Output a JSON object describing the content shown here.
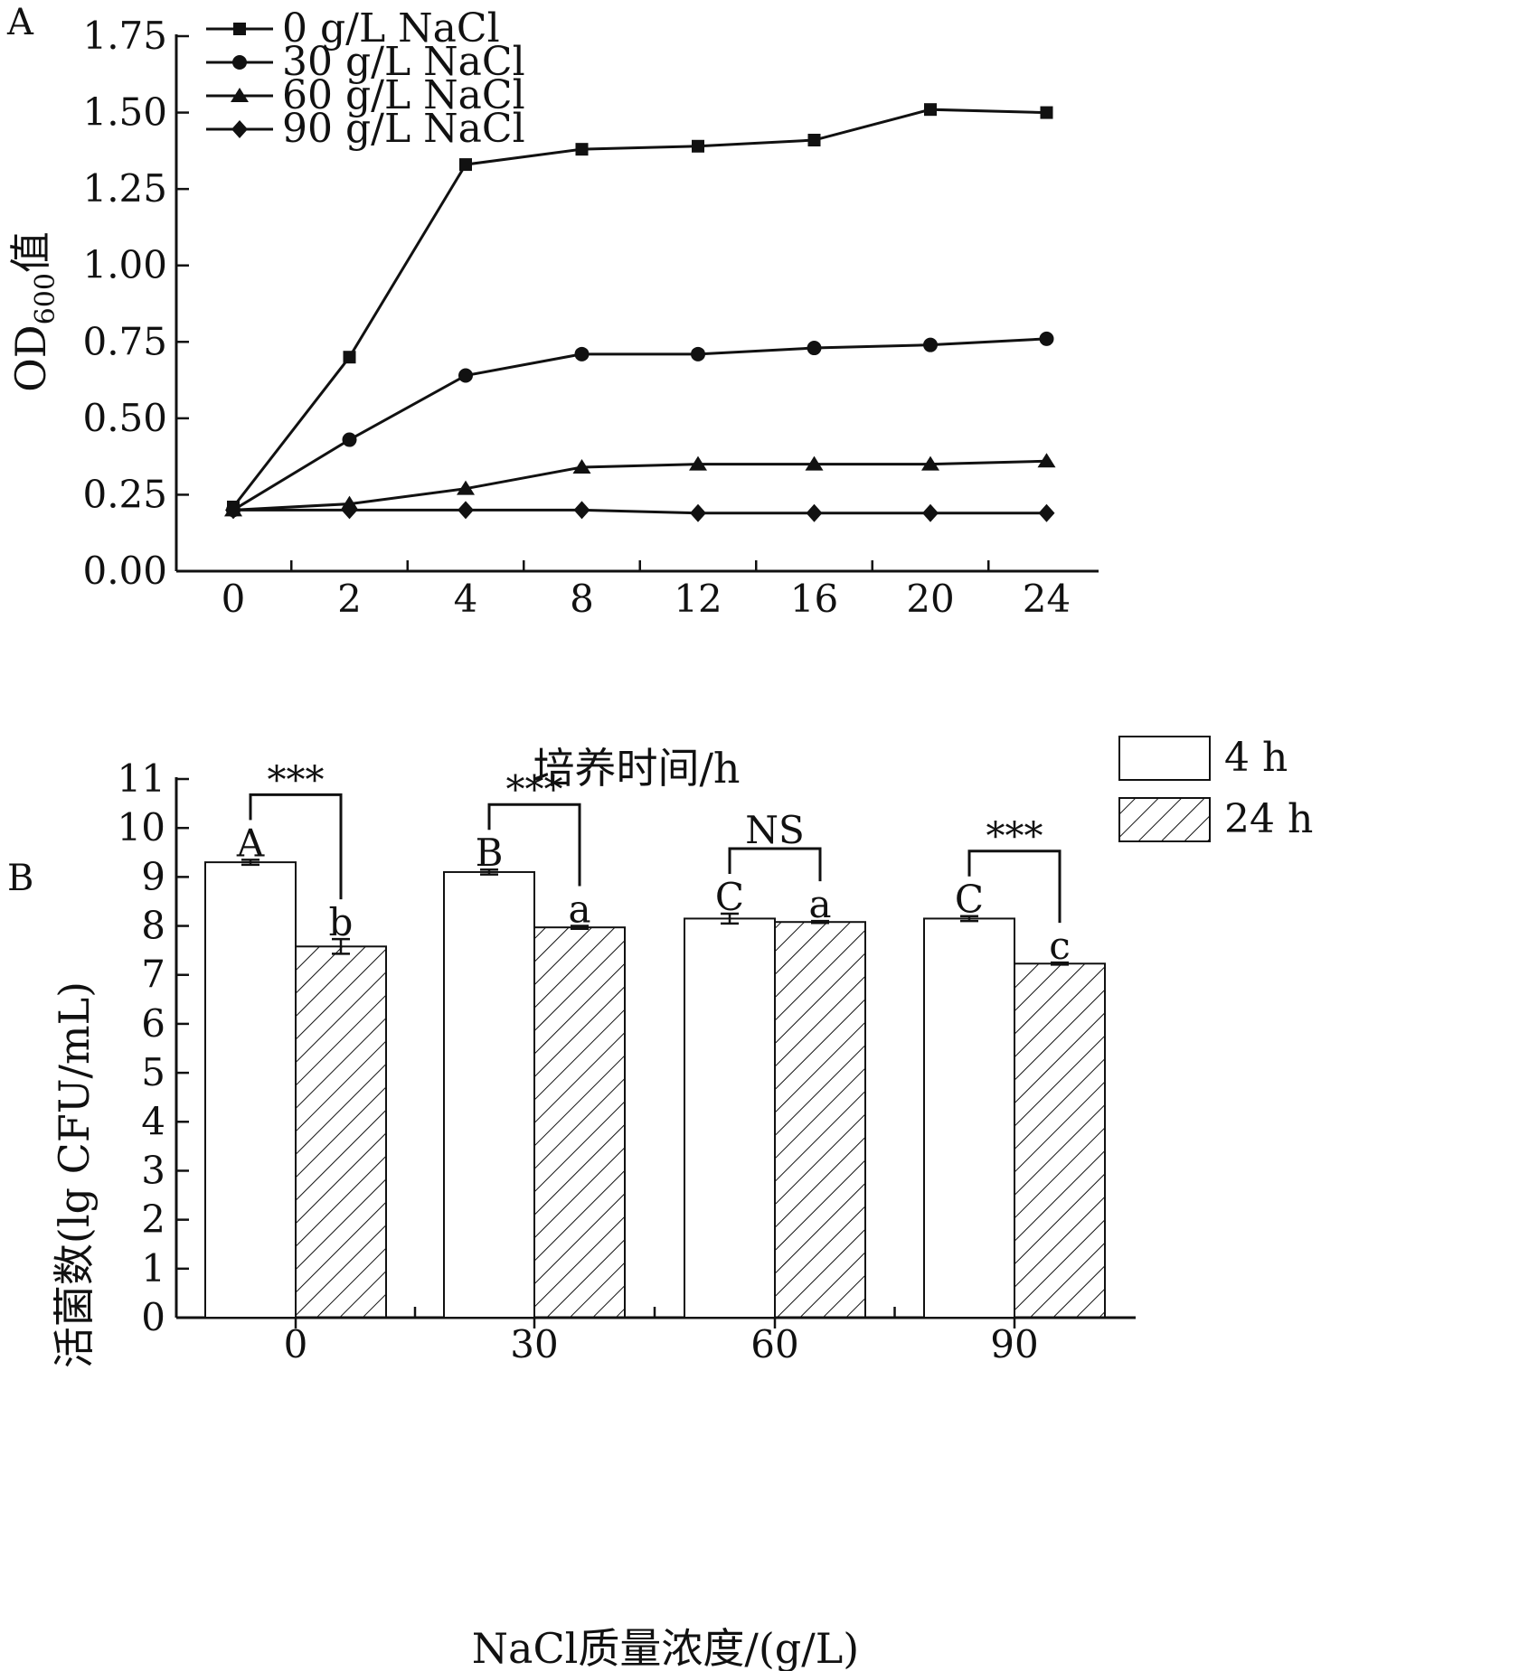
{
  "chart_data": [
    {
      "panel": "A",
      "type": "line",
      "x": [
        "0",
        "2",
        "4",
        "8",
        "12",
        "16",
        "20",
        "24"
      ],
      "xlabel": "培养时间/h",
      "ylabel": {
        "main": "OD",
        "sub": "600",
        "suffix": "值"
      },
      "ylim": [
        0,
        1.75
      ],
      "yticks": [
        "0.00",
        "0.25",
        "0.50",
        "0.75",
        "1.00",
        "1.25",
        "1.50",
        "1.75"
      ],
      "legend_position": "top-left",
      "series": [
        {
          "name": "0 g/L NaCl",
          "marker": "square",
          "values": [
            0.21,
            0.7,
            1.33,
            1.38,
            1.39,
            1.41,
            1.51,
            1.5
          ]
        },
        {
          "name": "30 g/L NaCl",
          "marker": "circle",
          "values": [
            0.2,
            0.43,
            0.64,
            0.71,
            0.71,
            0.73,
            0.74,
            0.76
          ]
        },
        {
          "name": "60 g/L NaCl",
          "marker": "triangle",
          "values": [
            0.2,
            0.22,
            0.27,
            0.34,
            0.35,
            0.35,
            0.35,
            0.36
          ]
        },
        {
          "name": "90 g/L NaCl",
          "marker": "diamond",
          "values": [
            0.2,
            0.2,
            0.2,
            0.2,
            0.19,
            0.19,
            0.19,
            0.19
          ]
        }
      ]
    },
    {
      "panel": "B",
      "type": "bar",
      "categories": [
        "0",
        "30",
        "60",
        "90"
      ],
      "xlabel": "NaCl质量浓度/(g/L)",
      "ylabel": "活菌数(lg CFU/mL)",
      "ylim": [
        0,
        11
      ],
      "yticks": [
        "0",
        "1",
        "2",
        "3",
        "4",
        "5",
        "6",
        "7",
        "8",
        "9",
        "10",
        "11"
      ],
      "legend_position": "top-right",
      "series": [
        {
          "name": "4 h",
          "pattern": "plain",
          "values": [
            9.3,
            9.1,
            8.15,
            8.15
          ],
          "errors": [
            0.05,
            0.05,
            0.1,
            0.05
          ],
          "letters": [
            "A",
            "B",
            "C",
            "C"
          ]
        },
        {
          "name": "24 h",
          "pattern": "hatched",
          "values": [
            7.58,
            7.97,
            8.08,
            7.23
          ],
          "errors": [
            0.15,
            0.03,
            0.02,
            0.02
          ],
          "letters": [
            "b",
            "a",
            "a",
            "c"
          ]
        }
      ],
      "significance": [
        "***",
        "***",
        "NS",
        "***"
      ]
    }
  ]
}
